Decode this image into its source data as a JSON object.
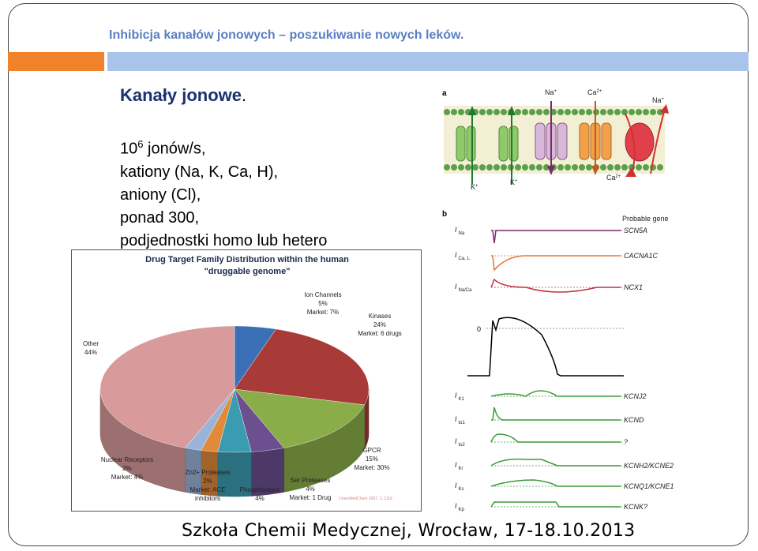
{
  "slide": {
    "title": "Inhibicja kanałów jonowych – poszukiwanie nowych leków.",
    "heading": "Kanały jonowe",
    "heading_dot": ".",
    "bullets": [
      {
        "pre": "10",
        "sup": "6",
        "post": " jonów/s,"
      },
      {
        "text": "kationy (Na, K, Ca, H),"
      },
      {
        "text": "aniony (Cl),"
      },
      {
        "text": "ponad 300,"
      },
      {
        "text": "podjednostki homo lub hetero"
      }
    ],
    "footer": "Szkoła Chemii Medycznej,  Wrocław, 17-18.10.2013",
    "colors": {
      "title": "#5a7fc4",
      "bar_orange": "#f0822a",
      "bar_blue": "#a8c4e8",
      "heading": "#1a3070"
    }
  },
  "pie_figure": {
    "title_line1": "Drug Target Family Distribution within the human",
    "title_line2": "\"druggable genome\"",
    "labels": {
      "ion_channels": [
        "Ion Channels",
        "5%",
        "Market: 7%"
      ],
      "kinases": [
        "Kinases",
        "24%",
        "Market: 6 drugs"
      ],
      "other": [
        "Other",
        "44%"
      ],
      "nuclear": [
        "Nuclear Receptors",
        "2%",
        "Market: 4%"
      ],
      "zn": [
        "Zn2+ Proteases",
        "2%",
        "Market: ACE",
        "inhibitors"
      ],
      "phosphatases": [
        "Phosphatases",
        "4%"
      ],
      "ser": [
        "Ser Proteases",
        "4%",
        "Market: 1 Drug"
      ],
      "gpcr": [
        "GPCR",
        "15%",
        "Market: 30%"
      ]
    },
    "citation": "ChemMedChem 2007, 2, 1116",
    "chart_data": {
      "type": "pie",
      "title": "Drug Target Family Distribution within the human \"druggable genome\"",
      "categories": [
        "Ion Channels",
        "Kinases",
        "GPCR",
        "Ser Proteases",
        "Phosphatases",
        "Zn2+ Proteases",
        "Nuclear Receptors",
        "Other"
      ],
      "values": [
        5,
        24,
        15,
        4,
        4,
        2,
        2,
        44
      ],
      "market": [
        "7%",
        "6 drugs",
        "30%",
        "1 Drug",
        "",
        "ACE inhibitors",
        "4%",
        ""
      ],
      "colors": [
        "#3b6fb6",
        "#a83a38",
        "#8aad4a",
        "#6b4f8f",
        "#3b9bb0",
        "#e08a3a",
        "#9bb3d8",
        "#d99a9c"
      ]
    }
  },
  "channel_figure": {
    "panel_a": "a",
    "panel_b": "b",
    "ions_top": [
      "Na",
      "Ca",
      "Na"
    ],
    "ions_top_sup": [
      "+",
      "2+",
      "+"
    ],
    "ions_bottom": [
      "K",
      "K",
      "Ca"
    ],
    "ions_bottom_sup": [
      "+",
      "+",
      "2+"
    ],
    "probable_gene": "Probable gene",
    "zero": "0",
    "traces": [
      {
        "current": "I",
        "sub": "Na",
        "gene": "SCN5A"
      },
      {
        "current": "I",
        "sub": "Ca, L",
        "gene": "CACNA1C"
      },
      {
        "current": "I",
        "sub": "Na/Ca",
        "gene": "NCX1"
      },
      {
        "current": "I",
        "sub": "K1",
        "gene": "KCNJ2"
      },
      {
        "current": "I",
        "sub": "to1",
        "gene": "KCND"
      },
      {
        "current": "I",
        "sub": "to2",
        "gene": "?"
      },
      {
        "current": "I",
        "sub": "Kr",
        "gene": "KCNH2/KCNE2"
      },
      {
        "current": "I",
        "sub": "Ks",
        "gene": "KCNQ1/KCNE1"
      },
      {
        "current": "I",
        "sub": "Kp",
        "gene": "KCNK?"
      }
    ]
  }
}
